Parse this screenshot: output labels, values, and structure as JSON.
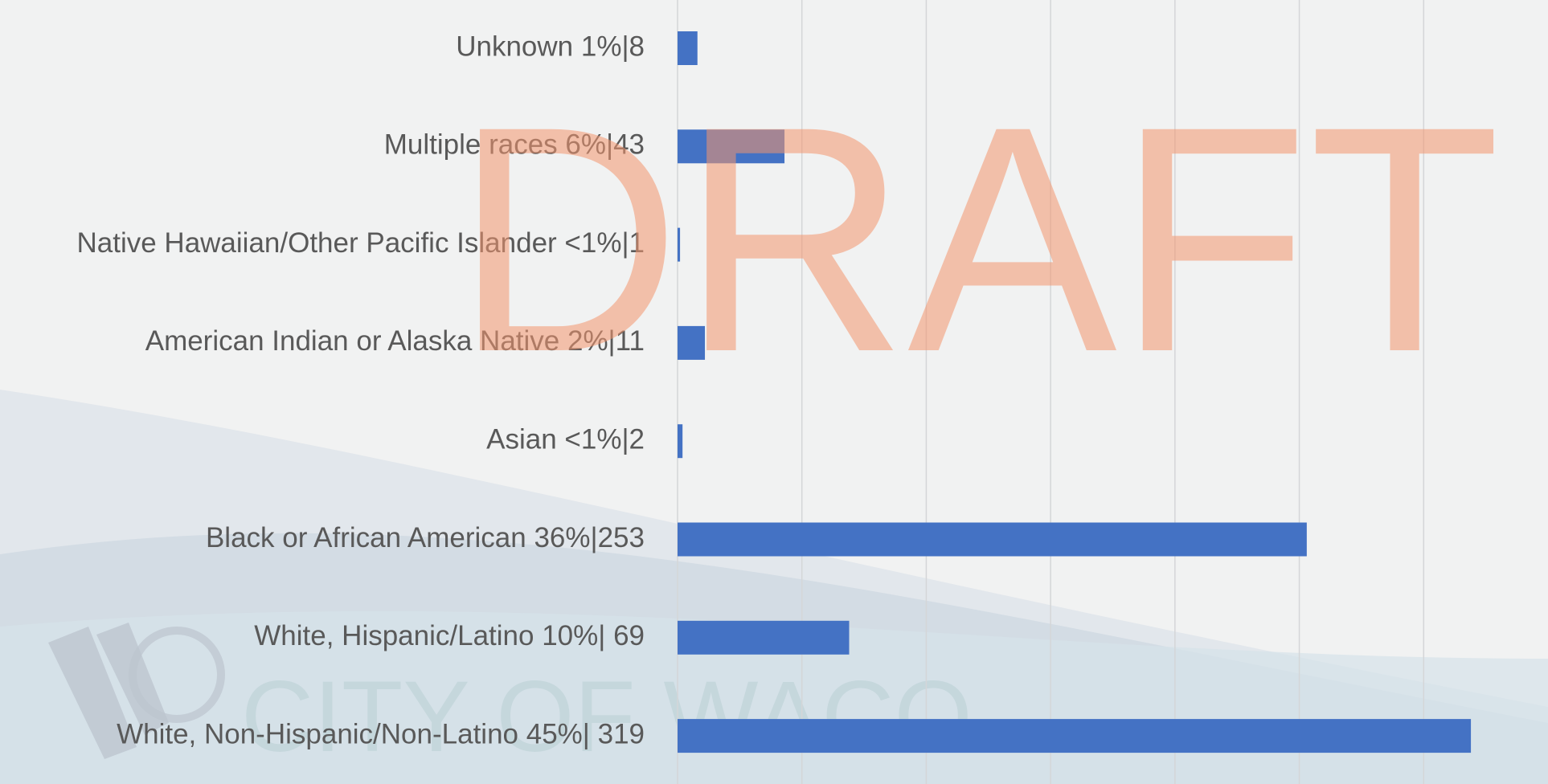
{
  "chart_data": {
    "type": "bar",
    "orientation": "horizontal",
    "categories": [
      "Unknown 1%|8",
      "Multiple races 6%|43",
      "Native Hawaiian/Other Pacific Islander <1%|1",
      "American Indian or Alaska Native 2%|11",
      "Asian <1%|2",
      "Black or African American 36%|253",
      "White, Hispanic/Latino 10%| 69",
      "White, Non-Hispanic/Non-Latino 45%| 319"
    ],
    "values": [
      8,
      43,
      1,
      11,
      2,
      253,
      69,
      319
    ],
    "color": "#4472c4",
    "xlim": [
      0,
      350
    ],
    "xticks": [
      0,
      50,
      100,
      150,
      200,
      250,
      300
    ],
    "grid": true,
    "watermark": "DRAFT",
    "logo_text": "CITY OF WACO"
  }
}
